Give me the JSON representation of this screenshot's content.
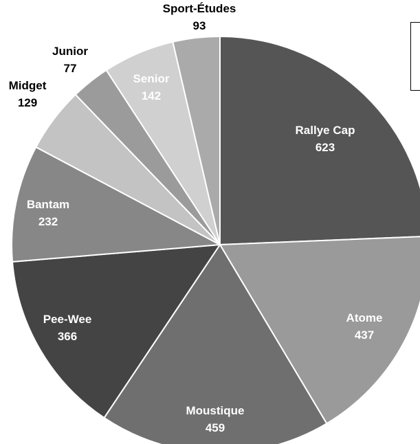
{
  "chart_data": {
    "type": "pie",
    "title": "",
    "start_angle_deg": 0,
    "direction": "clockwise",
    "slices": [
      {
        "label": "Rallye Cap",
        "value": 623,
        "color": "#555555",
        "label_color": "#ffffff",
        "label_inside": true
      },
      {
        "label": "Atome",
        "value": 437,
        "color": "#9a9a9a",
        "label_color": "#ffffff",
        "label_inside": true
      },
      {
        "label": "Moustique",
        "value": 459,
        "color": "#6f6f6f",
        "label_color": "#ffffff",
        "label_inside": true
      },
      {
        "label": "Pee-Wee",
        "value": 366,
        "color": "#444444",
        "label_color": "#ffffff",
        "label_inside": true
      },
      {
        "label": "Bantam",
        "value": 232,
        "color": "#878787",
        "label_color": "#ffffff",
        "label_inside": true
      },
      {
        "label": "Midget",
        "value": 129,
        "color": "#c3c3c3",
        "label_color": "#000000",
        "label_inside": false
      },
      {
        "label": "Junior",
        "value": 77,
        "color": "#9b9b9b",
        "label_color": "#000000",
        "label_inside": false
      },
      {
        "label": "Senior",
        "value": 142,
        "color": "#d0d0d0",
        "label_color": "#ffffff",
        "label_inside": true
      },
      {
        "label": "Sport-Études",
        "value": 93,
        "color": "#aaaaaa",
        "label_color": "#000000",
        "label_inside": false
      }
    ],
    "legend": {
      "position": "top-right",
      "entries": []
    }
  }
}
